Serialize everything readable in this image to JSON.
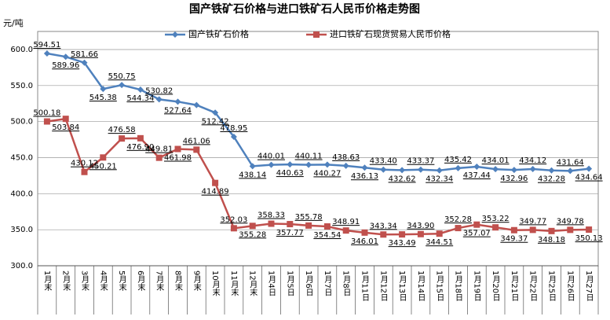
{
  "chart_data": {
    "type": "line",
    "title": "国产铁矿石价格与进口铁矿石人民币价格走势图",
    "ylabel": "元/吨",
    "categories": [
      "1月末",
      "2月末",
      "3月末",
      "4月末",
      "5月末",
      "6月末",
      "7月末",
      "8月末",
      "9月末",
      "10月末",
      "11月末",
      "12月末",
      "1月4日",
      "1月5日",
      "1月6日",
      "1月7日",
      "1月8日",
      "1月11日",
      "1月12日",
      "1月13日",
      "1月14日",
      "1月15日",
      "1月18日",
      "1月19日",
      "1月20日",
      "1月21日",
      "1月22日",
      "1月25日",
      "1月26日",
      "1月27日"
    ],
    "series": [
      {
        "name": "国产铁矿石价格",
        "color": "#4f81bd",
        "marker": "diamond",
        "values": [
          594.51,
          589.96,
          581.66,
          545.38,
          550.75,
          544.34,
          530.82,
          527.64,
          523,
          512.42,
          478.95,
          438.14,
          440.01,
          440.63,
          440.11,
          440.27,
          438.63,
          436.13,
          433.4,
          432.62,
          433.37,
          432.34,
          435.42,
          437.44,
          434.01,
          432.96,
          434.12,
          432.28,
          431.64,
          434.64
        ],
        "value_labels": [
          "594.51",
          "589.96",
          "581.66",
          "545.38",
          "550.75",
          "544.34",
          "530.82",
          "527.64",
          null,
          "512.42",
          "478.95",
          "438.14",
          "440.01",
          "440.63",
          "440.11",
          "440.27",
          "438.63",
          "436.13",
          "433.40",
          "432.62",
          "433.37",
          "432.34",
          "435.42",
          "437.44",
          "434.01",
          "432.96",
          "434.12",
          "432.28",
          "431.64",
          "434.64"
        ]
      },
      {
        "name": "进口铁矿石现货贸易人民币价格",
        "color": "#c0504d",
        "marker": "square",
        "values": [
          500.18,
          503.84,
          430.12,
          450.21,
          476.58,
          476.9,
          449.81,
          461.98,
          461.06,
          414.89,
          352.03,
          355.28,
          358.33,
          357.77,
          355.78,
          354.54,
          348.91,
          346.01,
          343.34,
          343.49,
          343.9,
          344.51,
          352.28,
          357.07,
          353.22,
          349.37,
          349.77,
          348.18,
          349.78,
          350.13
        ],
        "value_labels": [
          "500.18",
          "503.84",
          "430.12",
          "450.21",
          "476.58",
          "476.90",
          "449.81",
          "461.98",
          "461.06",
          "414.89",
          "352.03",
          "355.28",
          "358.33",
          "357.77",
          "355.78",
          "354.54",
          "348.91",
          "346.01",
          "343.34",
          "343.49",
          "343.90",
          "344.51",
          "352.28",
          "357.07",
          "353.22",
          "349.37",
          "349.77",
          "348.18",
          "349.78",
          "350.13"
        ]
      }
    ],
    "ylim": [
      300,
      600
    ],
    "yticks": [
      {
        "value": 300,
        "label": "300.0"
      },
      {
        "value": 350,
        "label": "350.0"
      },
      {
        "value": 400,
        "label": "400.0"
      },
      {
        "value": 450,
        "label": "450.0"
      },
      {
        "value": 500,
        "label": "500.0"
      },
      {
        "value": 550,
        "label": "550.0"
      },
      {
        "value": 600,
        "label": "600.0"
      }
    ],
    "grid": true,
    "legend": "top"
  }
}
